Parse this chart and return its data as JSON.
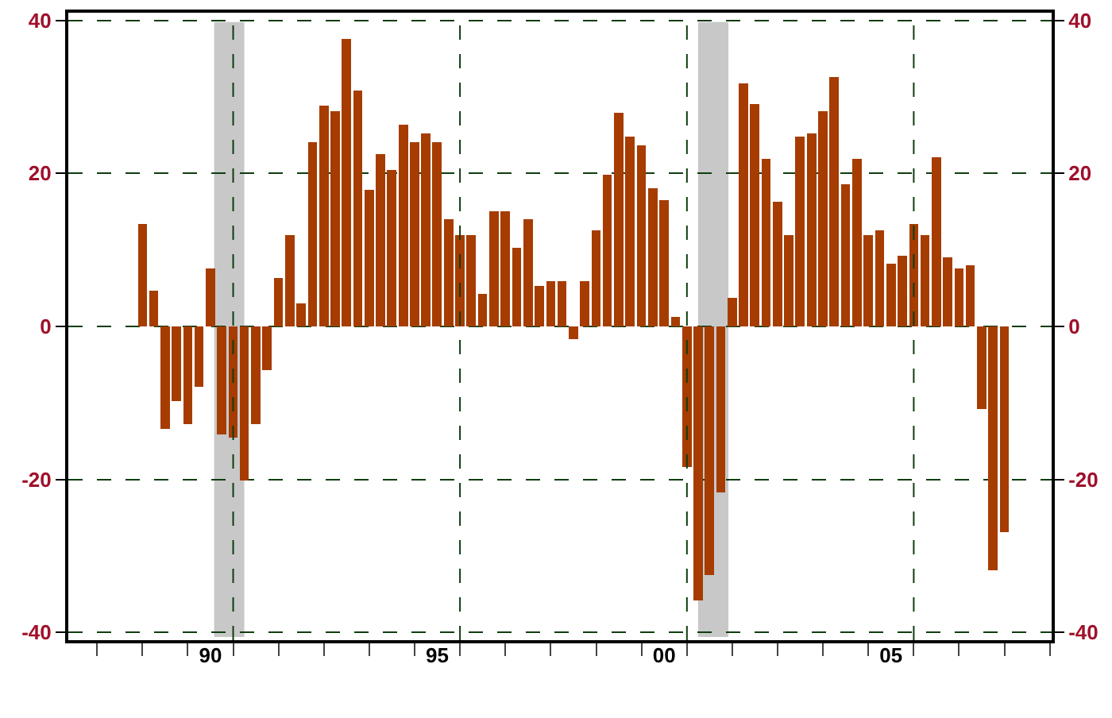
{
  "chart_data": {
    "type": "bar",
    "x": [
      "1989-01",
      "1989-04",
      "1989-07",
      "1989-10",
      "1990-01",
      "1990-04",
      "1990-07",
      "1990-10",
      "1991-01",
      "1991-04",
      "1991-07",
      "1991-10",
      "1992-01",
      "1992-04",
      "1992-07",
      "1992-10",
      "1993-01",
      "1993-04",
      "1993-07",
      "1993-10",
      "1994-01",
      "1994-04",
      "1994-07",
      "1994-10",
      "1995-01",
      "1995-04",
      "1995-07",
      "1995-10",
      "1996-01",
      "1996-04",
      "1996-07",
      "1996-10",
      "1997-01",
      "1997-04",
      "1997-07",
      "1997-10",
      "1998-01",
      "1998-04",
      "1998-07",
      "1998-10",
      "1999-01",
      "1999-04",
      "1999-07",
      "1999-10",
      "2000-01",
      "2000-04",
      "2000-07",
      "2000-10",
      "2001-01",
      "2001-04",
      "2001-07",
      "2001-10",
      "2002-01",
      "2002-04",
      "2002-07",
      "2002-10",
      "2003-01",
      "2003-04",
      "2003-07",
      "2003-10",
      "2004-01",
      "2004-04",
      "2004-07",
      "2004-10",
      "2005-01",
      "2005-04",
      "2005-07",
      "2005-10",
      "2006-01",
      "2006-04",
      "2006-07",
      "2006-10",
      "2007-01",
      "2007-04",
      "2007-07",
      "2007-10",
      "2008-01"
    ],
    "series": [
      {
        "color": "#a63c00",
        "values": [
          13.4,
          4.7,
          -13.4,
          -9.8,
          -12.8,
          -7.9,
          7.6,
          -14.1,
          -14.5,
          -20.1,
          -12.8,
          -5.7,
          6.3,
          11.9,
          3.0,
          24.1,
          28.9,
          28.1,
          37.6,
          30.8,
          17.9,
          22.5,
          20.4,
          26.4,
          24.1,
          25.2,
          24.1,
          14.0,
          11.9,
          11.9,
          4.3,
          15.0,
          15.0,
          10.3,
          14.0,
          5.3,
          5.9,
          5.9,
          -1.7,
          5.9,
          12.6,
          19.8,
          27.9,
          24.8,
          23.7,
          18.1,
          16.5,
          1.2,
          -18.4,
          -35.8,
          -32.5,
          -21.7,
          3.7,
          31.8,
          29.1,
          21.9,
          16.3,
          11.9,
          24.8,
          25.2,
          28.1,
          32.6,
          18.6,
          21.9,
          11.9,
          12.6,
          8.2,
          9.2,
          13.4,
          11.9,
          22.1,
          9.0,
          7.6,
          8.0,
          -10.8,
          -31.9,
          -26.9
        ]
      }
    ],
    "xlim": [
      "1987-05-15",
      "2009-01-15"
    ],
    "xticks": [
      {
        "value": "1988-01-01",
        "label": null
      },
      {
        "value": "1989-01-01",
        "label": null
      },
      {
        "value": "1990-01-01",
        "label": null
      },
      {
        "value": "1990-07-02",
        "label": "90"
      },
      {
        "value": "1991-01-01",
        "label": null
      },
      {
        "value": "1992-01-01",
        "label": null
      },
      {
        "value": "1993-01-01",
        "label": null
      },
      {
        "value": "1994-01-01",
        "label": null
      },
      {
        "value": "1995-01-01",
        "label": null
      },
      {
        "value": "1995-07-02",
        "label": "95"
      },
      {
        "value": "1996-01-01",
        "label": null
      },
      {
        "value": "1997-01-01",
        "label": null
      },
      {
        "value": "1998-01-01",
        "label": null
      },
      {
        "value": "1999-01-01",
        "label": null
      },
      {
        "value": "2000-01-01",
        "label": null
      },
      {
        "value": "2000-07-02",
        "label": "00"
      },
      {
        "value": "2001-01-01",
        "label": null
      },
      {
        "value": "2002-01-01",
        "label": null
      },
      {
        "value": "2003-01-01",
        "label": null
      },
      {
        "value": "2004-01-01",
        "label": null
      },
      {
        "value": "2005-01-01",
        "label": null
      },
      {
        "value": "2005-07-02",
        "label": "05"
      },
      {
        "value": "2006-01-01",
        "label": null
      },
      {
        "value": "2007-01-01",
        "label": null
      },
      {
        "value": "2008-01-01",
        "label": null
      },
      {
        "value": "2009-01-01",
        "label": null
      }
    ],
    "ylim": [
      -41,
      41
    ],
    "yticks": [
      -40,
      -20,
      0,
      20,
      40
    ],
    "y2lim": [
      -41,
      41
    ],
    "y2ticks": [
      -40,
      -20,
      0,
      20,
      40
    ],
    "grid": "y",
    "ref_lines": [
      {
        "axis": "x",
        "value": "1991-01-01",
        "color": "#0f3d0f",
        "line_style": "dashed"
      },
      {
        "axis": "x",
        "value": "1996-01-01",
        "color": "#0f3d0f",
        "line_style": "dashed"
      },
      {
        "axis": "x",
        "value": "2001-01-01",
        "color": "#0f3d0f",
        "line_style": "dashed"
      },
      {
        "axis": "x",
        "value": "2006-01-01",
        "color": "#0f3d0f",
        "line_style": "dashed"
      }
    ],
    "bands": [
      {
        "axis": "x",
        "from": "1990-08-01",
        "to": "1991-04-01",
        "color": "#c8c8c8"
      },
      {
        "axis": "x",
        "from": "2001-04-01",
        "to": "2001-12-01",
        "color": "#c8c8c8"
      }
    ]
  }
}
